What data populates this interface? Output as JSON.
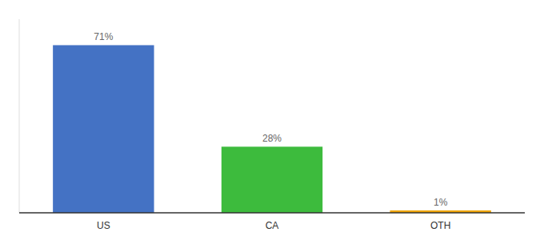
{
  "chart_data": {
    "type": "bar",
    "categories": [
      "US",
      "CA",
      "OTH"
    ],
    "values": [
      71,
      28,
      1
    ],
    "value_labels": [
      "71%",
      "28%",
      "1%"
    ],
    "colors": [
      "#4472c4",
      "#3dbb3d",
      "#f0a500"
    ],
    "ylim": [
      0,
      82
    ],
    "data_labels": true,
    "tick_labels": "x"
  }
}
